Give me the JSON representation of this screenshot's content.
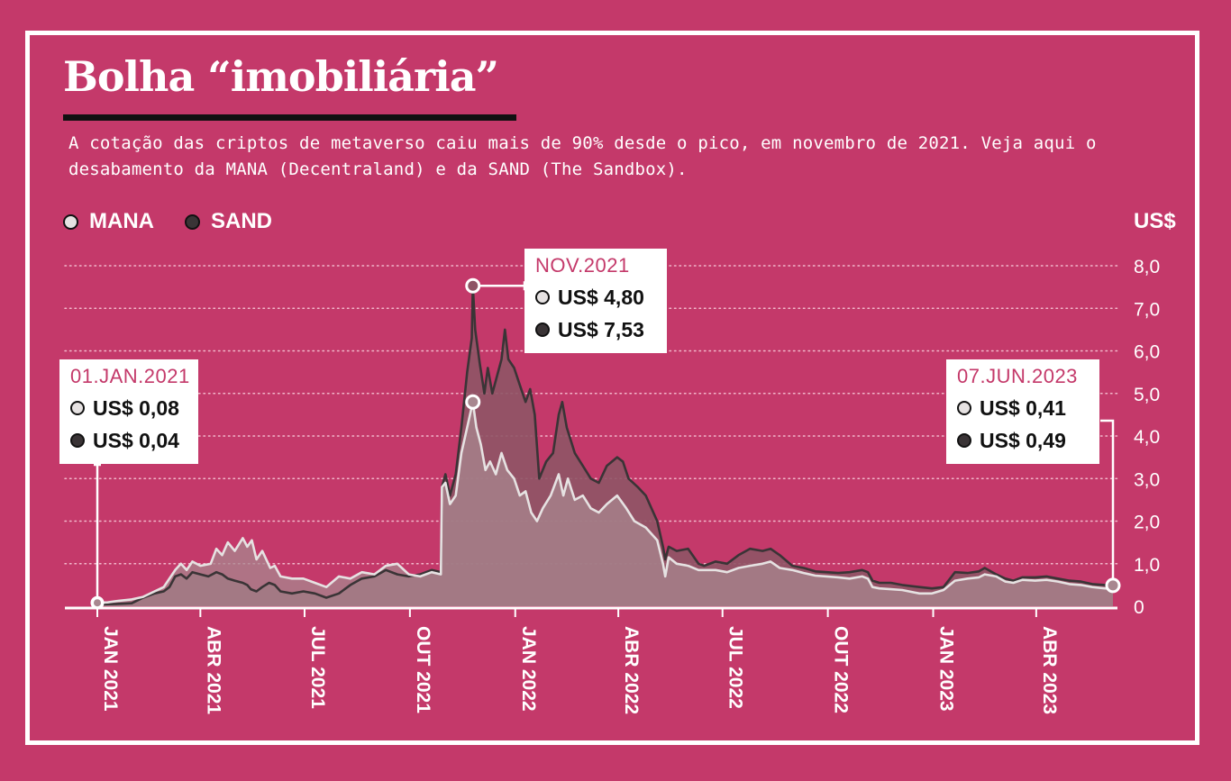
{
  "title": "Bolha “imobiliária”",
  "subtitle": "A cotação das criptos de metaverso caiu mais de 90% desde o pico, em novembro de 2021. Veja aqui o desabamento da MANA (Decentraland) e da SAND (The Sandbox).",
  "colors": {
    "background": "#c4396a",
    "mana": "#e6e2e2",
    "sand": "#3a3436",
    "sand_area": "#8f5566",
    "mana_area": "#a8878f",
    "accent": "#c4396a"
  },
  "legend": [
    {
      "label": "MANA",
      "color": "#e6e2e2"
    },
    {
      "label": "SAND",
      "color": "#3a3436"
    }
  ],
  "unit_label": "US$",
  "callouts": [
    {
      "date": "01.JAN.2021",
      "mana": "US$ 0,08",
      "sand": "US$ 0,04"
    },
    {
      "date": "NOV.2021",
      "mana": "US$ 4,80",
      "sand": "US$ 7,53"
    },
    {
      "date": "07.JUN.2023",
      "mana": "US$ 0,41",
      "sand": "US$ 0,49"
    }
  ],
  "chart_data": {
    "type": "area",
    "ylabel": "US$",
    "ylim": [
      0,
      8
    ],
    "y_ticks": [
      "0",
      "1,0",
      "2,0",
      "3,0",
      "4,0",
      "5,0",
      "6,0",
      "7,0",
      "8,0"
    ],
    "x_range": [
      "2021-01-01",
      "2023-06-07"
    ],
    "x_ticks": [
      {
        "date": "2021-01-01",
        "label": "JAN 2021"
      },
      {
        "date": "2021-04-01",
        "label": "ABR 2021"
      },
      {
        "date": "2021-07-01",
        "label": "JUL 2021"
      },
      {
        "date": "2021-10-01",
        "label": "OUT 2021"
      },
      {
        "date": "2022-01-01",
        "label": "JAN 2022"
      },
      {
        "date": "2022-04-01",
        "label": "ABR 2022"
      },
      {
        "date": "2022-07-01",
        "label": "JUL 2022"
      },
      {
        "date": "2022-10-01",
        "label": "OUT 2022"
      },
      {
        "date": "2023-01-01",
        "label": "JAN 2023"
      },
      {
        "date": "2023-04-01",
        "label": "ABR 2023"
      }
    ],
    "grid": true,
    "legend_position": "top-left",
    "series": [
      {
        "name": "MANA",
        "color": "#e6e2e2",
        "points": [
          [
            "2021-01-01",
            0.08
          ],
          [
            "2021-01-10",
            0.09
          ],
          [
            "2021-01-20",
            0.13
          ],
          [
            "2021-01-31",
            0.16
          ],
          [
            "2021-02-10",
            0.22
          ],
          [
            "2021-02-20",
            0.35
          ],
          [
            "2021-02-28",
            0.45
          ],
          [
            "2021-03-10",
            0.85
          ],
          [
            "2021-03-15",
            1.0
          ],
          [
            "2021-03-20",
            0.85
          ],
          [
            "2021-03-25",
            1.05
          ],
          [
            "2021-04-01",
            0.95
          ],
          [
            "2021-04-10",
            1.0
          ],
          [
            "2021-04-15",
            1.35
          ],
          [
            "2021-04-20",
            1.2
          ],
          [
            "2021-04-25",
            1.5
          ],
          [
            "2021-05-01",
            1.3
          ],
          [
            "2021-05-08",
            1.6
          ],
          [
            "2021-05-12",
            1.4
          ],
          [
            "2021-05-16",
            1.55
          ],
          [
            "2021-05-20",
            1.1
          ],
          [
            "2021-05-25",
            1.3
          ],
          [
            "2021-06-01",
            0.9
          ],
          [
            "2021-06-05",
            0.95
          ],
          [
            "2021-06-10",
            0.7
          ],
          [
            "2021-06-20",
            0.65
          ],
          [
            "2021-06-30",
            0.65
          ],
          [
            "2021-07-10",
            0.55
          ],
          [
            "2021-07-20",
            0.45
          ],
          [
            "2021-07-31",
            0.7
          ],
          [
            "2021-08-10",
            0.65
          ],
          [
            "2021-08-20",
            0.8
          ],
          [
            "2021-08-31",
            0.75
          ],
          [
            "2021-09-10",
            0.95
          ],
          [
            "2021-09-20",
            1.0
          ],
          [
            "2021-09-30",
            0.75
          ],
          [
            "2021-10-10",
            0.7
          ],
          [
            "2021-10-20",
            0.8
          ],
          [
            "2021-10-28",
            0.75
          ],
          [
            "2021-10-29",
            2.8
          ],
          [
            "2021-11-01",
            2.9
          ],
          [
            "2021-11-05",
            2.4
          ],
          [
            "2021-11-10",
            2.6
          ],
          [
            "2021-11-15",
            3.6
          ],
          [
            "2021-11-20",
            4.2
          ],
          [
            "2021-11-25",
            4.8
          ],
          [
            "2021-11-28",
            4.2
          ],
          [
            "2021-12-02",
            3.8
          ],
          [
            "2021-12-06",
            3.2
          ],
          [
            "2021-12-10",
            3.4
          ],
          [
            "2021-12-15",
            3.1
          ],
          [
            "2021-12-20",
            3.6
          ],
          [
            "2021-12-25",
            3.2
          ],
          [
            "2021-12-31",
            3.0
          ],
          [
            "2022-01-05",
            2.6
          ],
          [
            "2022-01-10",
            2.7
          ],
          [
            "2022-01-15",
            2.2
          ],
          [
            "2022-01-20",
            2.0
          ],
          [
            "2022-01-25",
            2.3
          ],
          [
            "2022-02-01",
            2.6
          ],
          [
            "2022-02-08",
            3.1
          ],
          [
            "2022-02-12",
            2.6
          ],
          [
            "2022-02-16",
            3.0
          ],
          [
            "2022-02-22",
            2.5
          ],
          [
            "2022-03-01",
            2.6
          ],
          [
            "2022-03-08",
            2.3
          ],
          [
            "2022-03-15",
            2.2
          ],
          [
            "2022-03-22",
            2.4
          ],
          [
            "2022-03-31",
            2.6
          ],
          [
            "2022-04-08",
            2.3
          ],
          [
            "2022-04-15",
            2.0
          ],
          [
            "2022-04-25",
            1.85
          ],
          [
            "2022-05-05",
            1.55
          ],
          [
            "2022-05-10",
            1.0
          ],
          [
            "2022-05-12",
            0.7
          ],
          [
            "2022-05-15",
            1.15
          ],
          [
            "2022-05-22",
            1.0
          ],
          [
            "2022-06-01",
            0.95
          ],
          [
            "2022-06-10",
            0.85
          ],
          [
            "2022-06-15",
            0.85
          ],
          [
            "2022-06-25",
            0.85
          ],
          [
            "2022-07-05",
            0.8
          ],
          [
            "2022-07-15",
            0.9
          ],
          [
            "2022-07-25",
            0.95
          ],
          [
            "2022-08-05",
            1.0
          ],
          [
            "2022-08-12",
            1.05
          ],
          [
            "2022-08-20",
            0.9
          ],
          [
            "2022-08-31",
            0.85
          ],
          [
            "2022-09-10",
            0.78
          ],
          [
            "2022-09-20",
            0.72
          ],
          [
            "2022-09-30",
            0.7
          ],
          [
            "2022-10-10",
            0.68
          ],
          [
            "2022-10-20",
            0.65
          ],
          [
            "2022-10-31",
            0.7
          ],
          [
            "2022-11-05",
            0.65
          ],
          [
            "2022-11-09",
            0.45
          ],
          [
            "2022-11-15",
            0.42
          ],
          [
            "2022-11-25",
            0.4
          ],
          [
            "2022-12-05",
            0.38
          ],
          [
            "2022-12-20",
            0.3
          ],
          [
            "2022-12-31",
            0.3
          ],
          [
            "2023-01-10",
            0.38
          ],
          [
            "2023-01-20",
            0.6
          ],
          [
            "2023-01-31",
            0.65
          ],
          [
            "2023-02-10",
            0.68
          ],
          [
            "2023-02-15",
            0.75
          ],
          [
            "2023-02-25",
            0.7
          ],
          [
            "2023-03-05",
            0.58
          ],
          [
            "2023-03-12",
            0.55
          ],
          [
            "2023-03-20",
            0.62
          ],
          [
            "2023-03-31",
            0.6
          ],
          [
            "2023-04-10",
            0.62
          ],
          [
            "2023-04-20",
            0.58
          ],
          [
            "2023-04-30",
            0.52
          ],
          [
            "2023-05-10",
            0.5
          ],
          [
            "2023-05-20",
            0.45
          ],
          [
            "2023-05-31",
            0.42
          ],
          [
            "2023-06-07",
            0.41
          ]
        ]
      },
      {
        "name": "SAND",
        "color": "#3a3436",
        "points": [
          [
            "2021-01-01",
            0.04
          ],
          [
            "2021-01-15",
            0.05
          ],
          [
            "2021-01-31",
            0.07
          ],
          [
            "2021-02-10",
            0.2
          ],
          [
            "2021-02-20",
            0.3
          ],
          [
            "2021-02-28",
            0.35
          ],
          [
            "2021-03-05",
            0.45
          ],
          [
            "2021-03-10",
            0.7
          ],
          [
            "2021-03-15",
            0.75
          ],
          [
            "2021-03-20",
            0.65
          ],
          [
            "2021-03-25",
            0.8
          ],
          [
            "2021-04-01",
            0.75
          ],
          [
            "2021-04-08",
            0.7
          ],
          [
            "2021-04-15",
            0.8
          ],
          [
            "2021-04-20",
            0.75
          ],
          [
            "2021-04-25",
            0.65
          ],
          [
            "2021-05-01",
            0.6
          ],
          [
            "2021-05-08",
            0.55
          ],
          [
            "2021-05-12",
            0.5
          ],
          [
            "2021-05-15",
            0.4
          ],
          [
            "2021-05-20",
            0.35
          ],
          [
            "2021-05-25",
            0.45
          ],
          [
            "2021-05-31",
            0.55
          ],
          [
            "2021-06-05",
            0.5
          ],
          [
            "2021-06-10",
            0.35
          ],
          [
            "2021-06-20",
            0.3
          ],
          [
            "2021-06-30",
            0.35
          ],
          [
            "2021-07-10",
            0.3
          ],
          [
            "2021-07-20",
            0.2
          ],
          [
            "2021-07-31",
            0.3
          ],
          [
            "2021-08-10",
            0.5
          ],
          [
            "2021-08-20",
            0.65
          ],
          [
            "2021-08-31",
            0.7
          ],
          [
            "2021-09-10",
            0.85
          ],
          [
            "2021-09-20",
            0.75
          ],
          [
            "2021-09-30",
            0.7
          ],
          [
            "2021-10-10",
            0.75
          ],
          [
            "2021-10-20",
            0.85
          ],
          [
            "2021-10-28",
            0.8
          ],
          [
            "2021-10-29",
            2.8
          ],
          [
            "2021-11-01",
            3.1
          ],
          [
            "2021-11-05",
            2.6
          ],
          [
            "2021-11-10",
            3.1
          ],
          [
            "2021-11-15",
            4.2
          ],
          [
            "2021-11-20",
            5.5
          ],
          [
            "2021-11-24",
            6.3
          ],
          [
            "2021-11-25",
            7.53
          ],
          [
            "2021-11-27",
            6.5
          ],
          [
            "2021-12-01",
            5.7
          ],
          [
            "2021-12-05",
            5.0
          ],
          [
            "2021-12-08",
            5.6
          ],
          [
            "2021-12-12",
            5.0
          ],
          [
            "2021-12-16",
            5.4
          ],
          [
            "2021-12-20",
            5.8
          ],
          [
            "2021-12-23",
            6.5
          ],
          [
            "2021-12-26",
            5.8
          ],
          [
            "2021-12-31",
            5.6
          ],
          [
            "2022-01-05",
            5.2
          ],
          [
            "2022-01-10",
            4.8
          ],
          [
            "2022-01-14",
            5.1
          ],
          [
            "2022-01-18",
            4.5
          ],
          [
            "2022-01-22",
            3.0
          ],
          [
            "2022-01-28",
            3.4
          ],
          [
            "2022-02-03",
            3.6
          ],
          [
            "2022-02-08",
            4.5
          ],
          [
            "2022-02-11",
            4.8
          ],
          [
            "2022-02-15",
            4.2
          ],
          [
            "2022-02-22",
            3.6
          ],
          [
            "2022-03-01",
            3.3
          ],
          [
            "2022-03-08",
            3.0
          ],
          [
            "2022-03-15",
            2.9
          ],
          [
            "2022-03-22",
            3.3
          ],
          [
            "2022-03-31",
            3.5
          ],
          [
            "2022-04-05",
            3.4
          ],
          [
            "2022-04-10",
            3.0
          ],
          [
            "2022-04-18",
            2.8
          ],
          [
            "2022-04-25",
            2.6
          ],
          [
            "2022-05-05",
            2.0
          ],
          [
            "2022-05-10",
            1.4
          ],
          [
            "2022-05-12",
            1.1
          ],
          [
            "2022-05-15",
            1.4
          ],
          [
            "2022-05-22",
            1.3
          ],
          [
            "2022-06-01",
            1.35
          ],
          [
            "2022-06-10",
            1.0
          ],
          [
            "2022-06-15",
            0.95
          ],
          [
            "2022-06-25",
            1.05
          ],
          [
            "2022-07-05",
            1.0
          ],
          [
            "2022-07-15",
            1.2
          ],
          [
            "2022-07-25",
            1.35
          ],
          [
            "2022-08-05",
            1.3
          ],
          [
            "2022-08-12",
            1.35
          ],
          [
            "2022-08-20",
            1.2
          ],
          [
            "2022-08-31",
            0.95
          ],
          [
            "2022-09-10",
            0.9
          ],
          [
            "2022-09-20",
            0.82
          ],
          [
            "2022-09-30",
            0.8
          ],
          [
            "2022-10-10",
            0.78
          ],
          [
            "2022-10-20",
            0.8
          ],
          [
            "2022-10-31",
            0.85
          ],
          [
            "2022-11-05",
            0.8
          ],
          [
            "2022-11-09",
            0.6
          ],
          [
            "2022-11-15",
            0.55
          ],
          [
            "2022-11-25",
            0.55
          ],
          [
            "2022-12-05",
            0.5
          ],
          [
            "2022-12-20",
            0.45
          ],
          [
            "2022-12-31",
            0.42
          ],
          [
            "2023-01-10",
            0.45
          ],
          [
            "2023-01-20",
            0.8
          ],
          [
            "2023-01-31",
            0.78
          ],
          [
            "2023-02-10",
            0.82
          ],
          [
            "2023-02-15",
            0.9
          ],
          [
            "2023-02-25",
            0.75
          ],
          [
            "2023-03-05",
            0.65
          ],
          [
            "2023-03-12",
            0.6
          ],
          [
            "2023-03-20",
            0.68
          ],
          [
            "2023-03-31",
            0.68
          ],
          [
            "2023-04-10",
            0.7
          ],
          [
            "2023-04-20",
            0.65
          ],
          [
            "2023-04-30",
            0.6
          ],
          [
            "2023-05-10",
            0.58
          ],
          [
            "2023-05-20",
            0.52
          ],
          [
            "2023-05-31",
            0.5
          ],
          [
            "2023-06-07",
            0.49
          ]
        ]
      }
    ]
  }
}
